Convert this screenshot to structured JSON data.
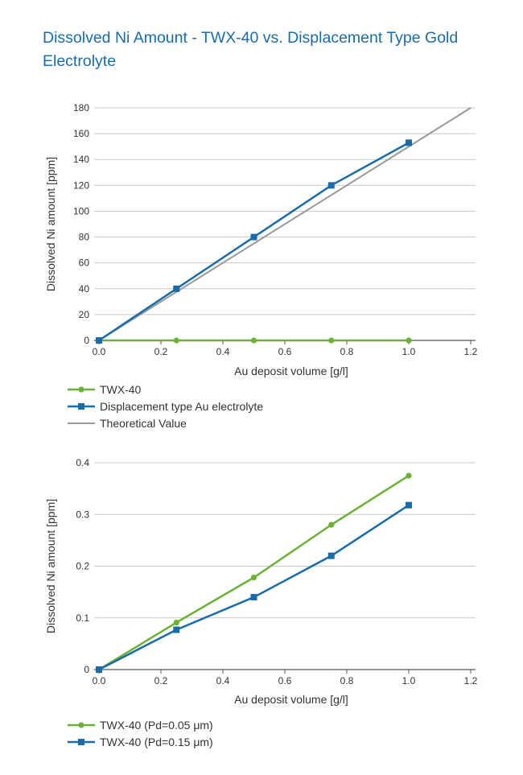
{
  "title": "Dissolved Ni Amount  - TWX-40  vs. Displacement Type Gold Electrolyte",
  "colors": {
    "green": "#6ab234",
    "blue": "#1a6ca8",
    "gray": "#999999",
    "grid": "#c8c8c8",
    "title": "#1a6ca8"
  },
  "chart_data": [
    {
      "type": "line",
      "xlabel": "Au deposit volume [g/l]",
      "ylabel": "Dissolved Ni amount [ppm]",
      "xlim": [
        0,
        1.2
      ],
      "ylim": [
        0,
        180
      ],
      "xticks": [
        "0.0",
        "0.2",
        "0.4",
        "0.6",
        "0.8",
        "1.0",
        "1.2"
      ],
      "yticks": [
        "0",
        "20",
        "40",
        "60",
        "80",
        "100",
        "120",
        "140",
        "160",
        "180"
      ],
      "grid": "horizontal",
      "legend_position": "bottom-left",
      "series": [
        {
          "name": "TWX-40",
          "color": "#6ab234",
          "marker": "circle",
          "x": [
            0,
            0.25,
            0.5,
            0.75,
            1.0
          ],
          "y": [
            0,
            0,
            0,
            0,
            0
          ]
        },
        {
          "name": "Displacement type Au electrolyte",
          "color": "#1a6ca8",
          "marker": "square",
          "x": [
            0,
            0.25,
            0.5,
            0.75,
            1.0
          ],
          "y": [
            0,
            40,
            80,
            120,
            153
          ]
        },
        {
          "name": "Theoretical Value",
          "color": "#999999",
          "marker": "none",
          "x": [
            0,
            1.2
          ],
          "y": [
            0,
            180
          ]
        }
      ]
    },
    {
      "type": "line",
      "xlabel": "Au deposit volume [g/l]",
      "ylabel": "Dissolved Ni amount [ppm]",
      "xlim": [
        0,
        1.2
      ],
      "ylim": [
        0,
        0.4
      ],
      "xticks": [
        "0.0",
        "0.2",
        "0.4",
        "0.6",
        "0.8",
        "1.0",
        "1.2"
      ],
      "yticks": [
        "0",
        "0.1",
        "0.2",
        "0.3",
        "0.4"
      ],
      "grid": "horizontal",
      "legend_position": "bottom-left",
      "series": [
        {
          "name": "TWX-40 (Pd=0.05 μm)",
          "color": "#6ab234",
          "marker": "circle",
          "x": [
            0,
            0.25,
            0.5,
            0.75,
            1.0
          ],
          "y": [
            0,
            0.091,
            0.178,
            0.28,
            0.375
          ]
        },
        {
          "name": "TWX-40 (Pd=0.15 μm)",
          "color": "#1a6ca8",
          "marker": "square",
          "x": [
            0,
            0.25,
            0.5,
            0.75,
            1.0
          ],
          "y": [
            0,
            0.077,
            0.14,
            0.22,
            0.318
          ]
        }
      ]
    }
  ]
}
